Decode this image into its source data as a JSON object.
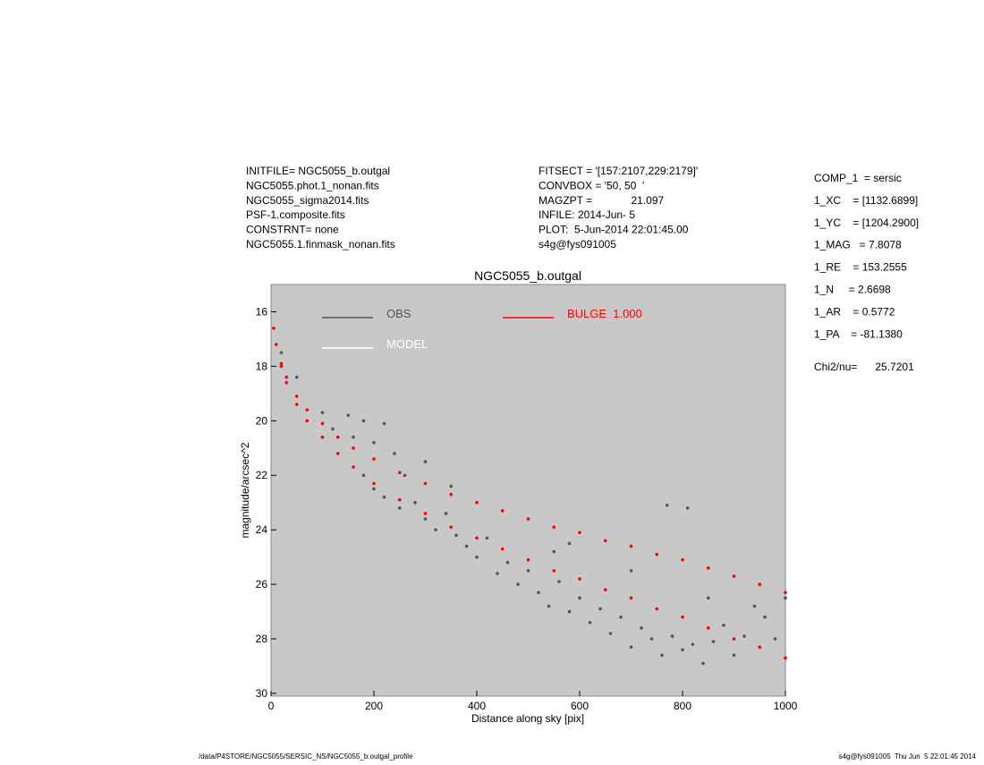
{
  "fit_info_left": [
    "INITFILE= NGC5055_b.outgal",
    "NGC5055.phot.1_nonan.fits",
    "NGC5055_sigma2014.fits",
    "PSF-1.composite.fits",
    "CONSTRNT= none",
    "NGC5055.1.finmask_nonan.fits"
  ],
  "fit_info_middle": [
    "FITSECT = '[157:2107,229:2179]'",
    "CONVBOX = '50, 50  '",
    "MAGZPT =             21.097",
    "INFILE: 2014-Jun- 5",
    "PLOT:  5-Jun-2014 22:01:45.00",
    "s4g@fys091005"
  ],
  "parameters": [
    "COMP_1  = sersic",
    "1_XC    = [1132.6899]",
    "1_YC    = [1204.2900]",
    "1_MAG   = 7.8078",
    "1_RE    = 153.2555",
    "1_N     = 2.6698",
    "1_AR    = 0.5772",
    "1_PA    = -81.1380"
  ],
  "chi2": "Chi2/nu=      25.7201",
  "footer_left": "/data/P4STORE/NGC5055/SERSIC_NS/NGC5055_b.outgal_profile",
  "footer_right": "s4g@fys091005  Thu Jun  5 22:01:45 2014",
  "chart_data": {
    "type": "scatter",
    "title": "NGC5055_b.outgal",
    "x_label": "Distance along sky [pix]",
    "y_label": "magnitude/arcsec^2",
    "xlim": [
      0,
      1000
    ],
    "xticks": [
      0,
      200,
      400,
      600,
      800,
      1000
    ],
    "ylim": [
      30.1,
      15
    ],
    "yticks": [
      16,
      18,
      20,
      22,
      24,
      26,
      28,
      30
    ],
    "background": "#c8c8c8",
    "series": [
      {
        "name": "OBS",
        "color": "#555555",
        "x": [
          100,
          120,
          150,
          160,
          180,
          200,
          220,
          240,
          260,
          180,
          200,
          220,
          250,
          280,
          300,
          320,
          340,
          360,
          380,
          400,
          420,
          440,
          460,
          480,
          500,
          520,
          540,
          560,
          580,
          600,
          620,
          640,
          660,
          680,
          700,
          720,
          740,
          760,
          780,
          800,
          820,
          840,
          860,
          880,
          900,
          920,
          940,
          960,
          980,
          1000,
          580,
          700,
          850,
          770,
          810,
          300,
          350,
          50,
          20,
          550
        ],
        "values": [
          19.7,
          20.3,
          19.8,
          20.6,
          20.0,
          20.8,
          20.1,
          21.2,
          22.0,
          22.0,
          22.5,
          22.8,
          23.2,
          23.0,
          23.6,
          24.0,
          23.4,
          24.2,
          24.6,
          25.0,
          24.3,
          25.6,
          25.2,
          26.0,
          25.5,
          26.3,
          26.8,
          25.9,
          27.0,
          26.5,
          27.4,
          26.9,
          27.8,
          27.2,
          28.3,
          27.6,
          28.0,
          28.6,
          27.9,
          28.4,
          28.2,
          28.9,
          28.1,
          27.5,
          28.6,
          27.9,
          26.8,
          27.2,
          28.0,
          26.5,
          24.5,
          25.5,
          26.5,
          23.1,
          23.2,
          21.5,
          22.4,
          18.4,
          17.5,
          24.8
        ]
      },
      {
        "name": "MODEL",
        "color": "#ffffff",
        "x": [],
        "values": []
      },
      {
        "name": "BULGE  1.000",
        "color": "#ff0000",
        "x": [
          5,
          10,
          20,
          30,
          50,
          70,
          100,
          130,
          160,
          200,
          250,
          300,
          350,
          400,
          450,
          500,
          550,
          600,
          650,
          700,
          750,
          800,
          850,
          900,
          950,
          1000,
          20,
          30,
          50,
          70,
          100,
          130,
          160,
          200,
          250,
          300,
          350,
          400,
          450,
          500,
          550,
          600,
          650,
          700,
          750,
          800,
          850,
          900,
          950,
          1000
        ],
        "values": [
          16.6,
          17.2,
          17.9,
          18.4,
          19.1,
          19.6,
          20.1,
          20.6,
          21.0,
          21.4,
          21.9,
          22.3,
          22.7,
          23.0,
          23.3,
          23.6,
          23.9,
          24.1,
          24.4,
          24.6,
          24.9,
          25.1,
          25.4,
          25.7,
          26.0,
          26.3,
          18.0,
          18.6,
          19.4,
          20.0,
          20.6,
          21.2,
          21.7,
          22.3,
          22.9,
          23.4,
          23.9,
          24.3,
          24.7,
          25.1,
          25.5,
          25.8,
          26.2,
          26.5,
          26.9,
          27.2,
          27.6,
          28.0,
          28.3,
          28.7
        ]
      }
    ]
  }
}
